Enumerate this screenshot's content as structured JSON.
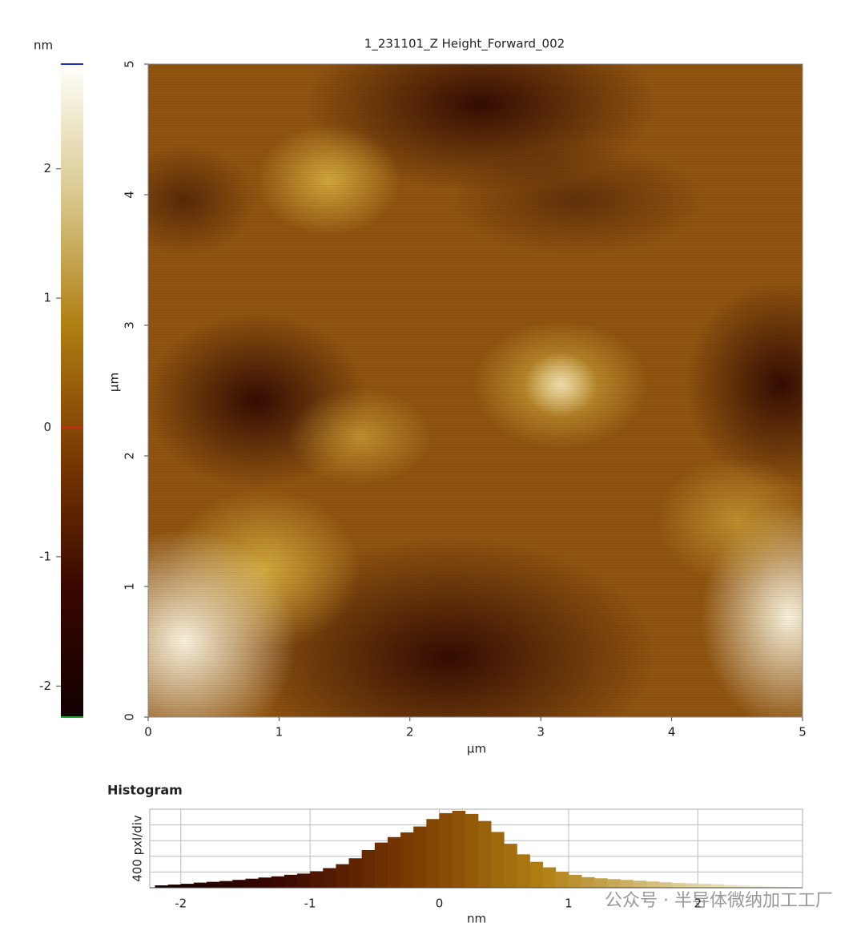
{
  "chart_data": [
    {
      "type": "heatmap",
      "title": "1_231101_Z Height_Forward_002",
      "xlabel": "µm",
      "ylabel": "µm",
      "xlim": [
        0,
        5
      ],
      "ylim": [
        0,
        5
      ],
      "xticks": [
        0,
        1,
        2,
        3,
        4,
        5
      ],
      "yticks": [
        0,
        1,
        2,
        3,
        4,
        5
      ]
    },
    {
      "type": "colorbar",
      "label": "nm",
      "ylim": [
        -2.24,
        2.81
      ],
      "yticks": [
        -2,
        -1,
        0,
        1,
        2
      ],
      "colormap": [
        "#120000",
        "#3a0800",
        "#7a3a02",
        "#b07f12",
        "#d9c98e",
        "#fffffa"
      ]
    },
    {
      "type": "histogram",
      "title": "Histogram",
      "xlabel": "nm",
      "ylabel": "400 pxl/div",
      "xlim": [
        -2.24,
        2.81
      ],
      "ylim": [
        0,
        2000
      ],
      "xticks": [
        -2,
        -1,
        0,
        1,
        2
      ],
      "ygrid": [
        400,
        800,
        1200,
        1600
      ],
      "grid": true,
      "bins": [
        -2.2,
        -2.1,
        -2.0,
        -1.9,
        -1.8,
        -1.7,
        -1.6,
        -1.5,
        -1.4,
        -1.3,
        -1.2,
        -1.1,
        -1.0,
        -0.9,
        -0.8,
        -0.7,
        -0.6,
        -0.5,
        -0.4,
        -0.3,
        -0.2,
        -0.1,
        0,
        0.1,
        0.2,
        0.3,
        0.4,
        0.5,
        0.6,
        0.7,
        0.8,
        0.9,
        1.0,
        1.1,
        1.2,
        1.3,
        1.4,
        1.5,
        1.6,
        1.7,
        1.8,
        1.9,
        2.0,
        2.1,
        2.2,
        2.3,
        2.4,
        2.5,
        2.6,
        2.7,
        2.8
      ],
      "counts": [
        60,
        80,
        100,
        130,
        150,
        170,
        200,
        230,
        260,
        290,
        330,
        360,
        420,
        500,
        600,
        750,
        960,
        1150,
        1290,
        1410,
        1560,
        1750,
        1900,
        1960,
        1880,
        1700,
        1420,
        1120,
        850,
        660,
        520,
        410,
        330,
        270,
        240,
        220,
        200,
        180,
        160,
        140,
        120,
        110,
        100,
        90,
        70,
        60,
        50,
        40,
        30,
        20
      ]
    }
  ],
  "watermark": "公众号 · 半导体微纳加工工厂"
}
